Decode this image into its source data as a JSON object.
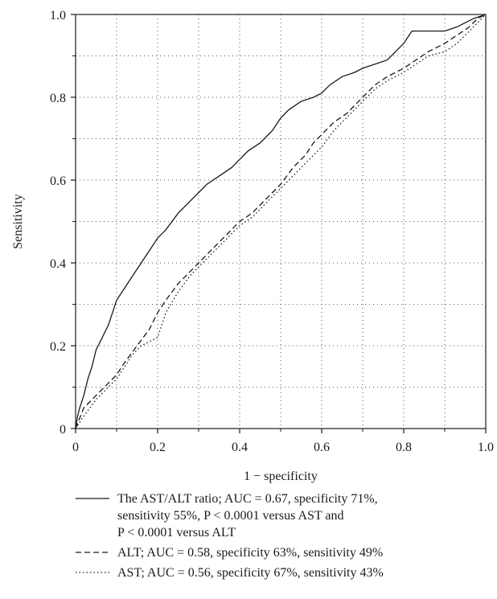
{
  "chart_data": {
    "type": "line",
    "xlabel": "1 − specificity",
    "ylabel": "Sensitivity",
    "xlim": [
      0,
      1
    ],
    "ylim": [
      0,
      1
    ],
    "xticks": [
      "0",
      "0.2",
      "0.4",
      "0.6",
      "0.8",
      "1.0"
    ],
    "yticks": [
      "0",
      "0.2",
      "0.4",
      "0.6",
      "0.8",
      "1.0"
    ],
    "minor_grid": "dotted at every 0.1",
    "series": [
      {
        "name": "The AST/ALT ratio",
        "style": "solid",
        "color": "#1a1a1a",
        "legend_lines": [
          "The AST/ALT ratio; AUC = 0.67, specificity 71%,",
          "sensitivity 55%, P < 0.0001 versus AST and",
          "P < 0.0001 versus ALT"
        ],
        "points": [
          [
            0,
            0
          ],
          [
            0.005,
            0.03
          ],
          [
            0.01,
            0.05
          ],
          [
            0.02,
            0.08
          ],
          [
            0.03,
            0.12
          ],
          [
            0.04,
            0.15
          ],
          [
            0.05,
            0.19
          ],
          [
            0.06,
            0.21
          ],
          [
            0.07,
            0.23
          ],
          [
            0.08,
            0.25
          ],
          [
            0.09,
            0.28
          ],
          [
            0.1,
            0.31
          ],
          [
            0.12,
            0.34
          ],
          [
            0.14,
            0.37
          ],
          [
            0.16,
            0.4
          ],
          [
            0.18,
            0.43
          ],
          [
            0.2,
            0.46
          ],
          [
            0.22,
            0.48
          ],
          [
            0.25,
            0.52
          ],
          [
            0.28,
            0.55
          ],
          [
            0.3,
            0.57
          ],
          [
            0.32,
            0.59
          ],
          [
            0.35,
            0.61
          ],
          [
            0.38,
            0.63
          ],
          [
            0.4,
            0.65
          ],
          [
            0.42,
            0.67
          ],
          [
            0.45,
            0.69
          ],
          [
            0.48,
            0.72
          ],
          [
            0.5,
            0.75
          ],
          [
            0.52,
            0.77
          ],
          [
            0.55,
            0.79
          ],
          [
            0.58,
            0.8
          ],
          [
            0.6,
            0.81
          ],
          [
            0.62,
            0.83
          ],
          [
            0.65,
            0.85
          ],
          [
            0.68,
            0.86
          ],
          [
            0.7,
            0.87
          ],
          [
            0.73,
            0.88
          ],
          [
            0.76,
            0.89
          ],
          [
            0.78,
            0.91
          ],
          [
            0.8,
            0.93
          ],
          [
            0.82,
            0.96
          ],
          [
            0.85,
            0.96
          ],
          [
            0.88,
            0.96
          ],
          [
            0.9,
            0.96
          ],
          [
            0.93,
            0.97
          ],
          [
            0.95,
            0.98
          ],
          [
            0.97,
            0.99
          ],
          [
            1,
            1
          ]
        ]
      },
      {
        "name": "ALT",
        "style": "dashed",
        "color": "#1a1a1a",
        "legend_lines": [
          "ALT; AUC = 0.58, specificity 63%, sensitivity 49%"
        ],
        "points": [
          [
            0,
            0
          ],
          [
            0.02,
            0.05
          ],
          [
            0.05,
            0.08
          ],
          [
            0.08,
            0.11
          ],
          [
            0.1,
            0.13
          ],
          [
            0.12,
            0.16
          ],
          [
            0.15,
            0.2
          ],
          [
            0.18,
            0.24
          ],
          [
            0.2,
            0.28
          ],
          [
            0.22,
            0.31
          ],
          [
            0.25,
            0.35
          ],
          [
            0.28,
            0.38
          ],
          [
            0.3,
            0.4
          ],
          [
            0.33,
            0.43
          ],
          [
            0.36,
            0.46
          ],
          [
            0.38,
            0.48
          ],
          [
            0.4,
            0.5
          ],
          [
            0.43,
            0.52
          ],
          [
            0.46,
            0.55
          ],
          [
            0.5,
            0.59
          ],
          [
            0.53,
            0.63
          ],
          [
            0.56,
            0.66
          ],
          [
            0.58,
            0.69
          ],
          [
            0.6,
            0.71
          ],
          [
            0.63,
            0.74
          ],
          [
            0.66,
            0.76
          ],
          [
            0.7,
            0.8
          ],
          [
            0.73,
            0.83
          ],
          [
            0.76,
            0.85
          ],
          [
            0.8,
            0.87
          ],
          [
            0.83,
            0.89
          ],
          [
            0.86,
            0.91
          ],
          [
            0.9,
            0.93
          ],
          [
            0.93,
            0.95
          ],
          [
            0.96,
            0.97
          ],
          [
            0.98,
            0.99
          ],
          [
            1,
            1
          ]
        ]
      },
      {
        "name": "AST",
        "style": "dotted",
        "color": "#1a1a1a",
        "legend_lines": [
          "AST; AUC = 0.56, specificity 67%, sensitivity 43%"
        ],
        "points": [
          [
            0,
            0
          ],
          [
            0.02,
            0.03
          ],
          [
            0.05,
            0.07
          ],
          [
            0.08,
            0.1
          ],
          [
            0.1,
            0.12
          ],
          [
            0.12,
            0.15
          ],
          [
            0.14,
            0.18
          ],
          [
            0.16,
            0.2
          ],
          [
            0.18,
            0.21
          ],
          [
            0.2,
            0.22
          ],
          [
            0.22,
            0.28
          ],
          [
            0.25,
            0.33
          ],
          [
            0.28,
            0.37
          ],
          [
            0.3,
            0.39
          ],
          [
            0.33,
            0.42
          ],
          [
            0.36,
            0.45
          ],
          [
            0.4,
            0.49
          ],
          [
            0.43,
            0.51
          ],
          [
            0.46,
            0.54
          ],
          [
            0.5,
            0.58
          ],
          [
            0.53,
            0.61
          ],
          [
            0.56,
            0.64
          ],
          [
            0.6,
            0.68
          ],
          [
            0.63,
            0.72
          ],
          [
            0.66,
            0.75
          ],
          [
            0.7,
            0.79
          ],
          [
            0.73,
            0.82
          ],
          [
            0.76,
            0.84
          ],
          [
            0.8,
            0.86
          ],
          [
            0.83,
            0.88
          ],
          [
            0.86,
            0.9
          ],
          [
            0.9,
            0.91
          ],
          [
            0.93,
            0.93
          ],
          [
            0.96,
            0.96
          ],
          [
            0.98,
            0.98
          ],
          [
            1,
            1
          ]
        ]
      }
    ]
  }
}
